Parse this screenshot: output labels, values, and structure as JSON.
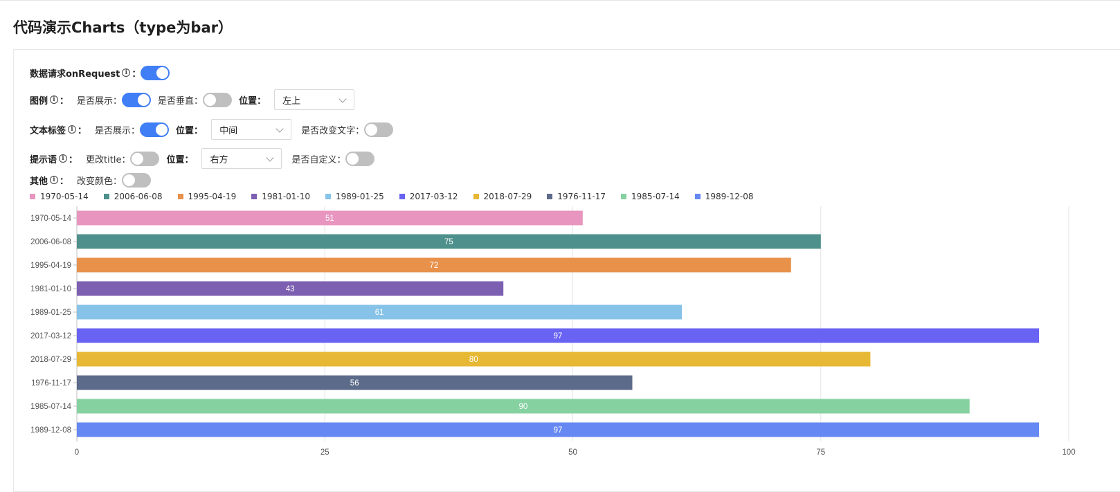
{
  "page": {
    "title": "代码演示Charts（type为bar）"
  },
  "controls": {
    "request": {
      "label": "数据请求onRequest",
      "colon": "：",
      "switch_on": true
    },
    "legend": {
      "label": "图例",
      "colon": "：",
      "show_label": "是否展示：",
      "show_on": true,
      "vertical_label": "是否垂直：",
      "vertical_on": false,
      "position_label": "位置：",
      "position_value": "左上"
    },
    "text_label": {
      "label": "文本标签",
      "colon": "：",
      "show_label": "是否展示：",
      "show_on": true,
      "position_label": "位置：",
      "position_value": "中间",
      "change_text_label": "是否改变文字：",
      "change_text_on": false
    },
    "tooltip": {
      "label": "提示语",
      "colon": "：",
      "change_title_label": "更改title：",
      "change_title_on": false,
      "position_label": "位置：",
      "position_value": "右方",
      "custom_label": "是否自定义：",
      "custom_on": false
    },
    "other": {
      "label": "其他",
      "colon": "：",
      "change_color_label": "改变颜色：",
      "change_color_on": false
    }
  },
  "chart_data": {
    "type": "bar",
    "orientation": "horizontal",
    "categories": [
      "1970-05-14",
      "2006-06-08",
      "1995-04-19",
      "1981-01-10",
      "1989-01-25",
      "2017-03-12",
      "2018-07-29",
      "1976-11-17",
      "1985-07-14",
      "1989-12-08"
    ],
    "values": [
      51,
      75,
      72,
      43,
      61,
      97,
      80,
      56,
      90,
      97
    ],
    "colors": [
      "#e895bf",
      "#4e908b",
      "#e8914a",
      "#7d5fb2",
      "#87c3e8",
      "#6963f3",
      "#e7b833",
      "#5d6b8b",
      "#85d2a0",
      "#6688f2"
    ],
    "xlim": [
      0,
      100
    ],
    "xticks": [
      0,
      25,
      50,
      75,
      100
    ],
    "grid": true,
    "data_labels": "center",
    "legend_position": "top-left"
  }
}
